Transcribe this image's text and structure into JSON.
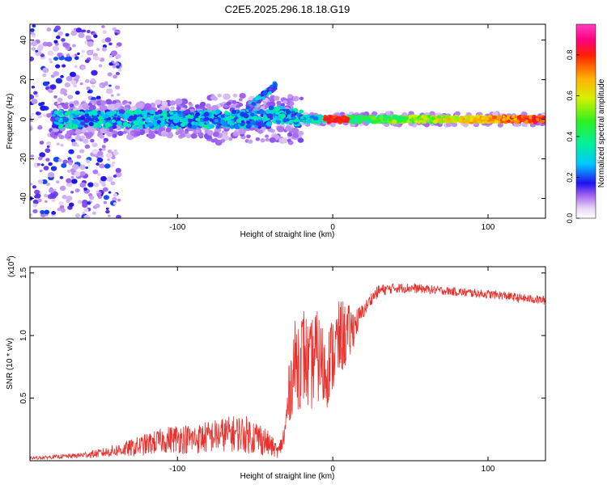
{
  "figure_title": "C2E5.2025.296.18.18.G19",
  "colors": {
    "snr_line": "#e8302c",
    "axis": "#000000",
    "background": "#ffffff"
  },
  "chart_data": [
    {
      "type": "heatmap",
      "title": "C2E5.2025.296.18.18.G19",
      "xlabel": "Height of straight line (km)",
      "ylabel": "Frequency (Hz)",
      "xlim": [
        -195,
        137
      ],
      "ylim": [
        -50,
        48
      ],
      "x_ticks": [
        -100,
        0,
        100
      ],
      "x_tick_labels": [
        "-100",
        "0",
        "100"
      ],
      "y_ticks": [
        -40,
        -20,
        0,
        20,
        40
      ],
      "y_tick_labels": [
        "-40",
        "-20",
        "0",
        "20",
        "40"
      ],
      "colorbar": {
        "label": "Normalized spectral amplitude",
        "range": [
          0.0,
          0.95
        ],
        "ticks": [
          0.0,
          0.2,
          0.4,
          0.6,
          0.8
        ],
        "tick_labels": [
          "0.0",
          "0.2",
          "0.4",
          "0.6",
          "0.8"
        ]
      },
      "features": [
        {
          "name": "noisy-region",
          "x_range": [
            -195,
            -137
          ],
          "freq_range": [
            -50,
            48
          ],
          "amplitude": 0.12
        },
        {
          "name": "main-band",
          "x_range": [
            -180,
            -20
          ],
          "center_freq": 0,
          "width_hz": 8,
          "amplitude": 0.25
        },
        {
          "name": "rising-branch",
          "x_range": [
            -55,
            -37
          ],
          "freq_range": [
            5,
            17
          ],
          "amplitude": 0.25
        },
        {
          "name": "tail-band",
          "x_range": [
            -20,
            137
          ],
          "center_freq": 0,
          "width_hz": 3,
          "amplitude": 0.9
        }
      ]
    },
    {
      "type": "line",
      "xlabel": "Height of straight line (km)",
      "ylabel": "SNR (10 * v/v)",
      "y_scale_label": "(x10",
      "y_scale_exponent": "4",
      "y_scale_close": ")",
      "xlim": [
        -195,
        137
      ],
      "ylim": [
        0,
        1.55
      ],
      "x_ticks": [
        -100,
        0,
        100
      ],
      "x_tick_labels": [
        "-100",
        "0",
        "100"
      ],
      "y_ticks": [
        0.5,
        1.0,
        1.5
      ],
      "y_tick_labels": [
        "0.5",
        "1.0",
        "1.5"
      ],
      "series": [
        {
          "name": "SNR",
          "x": [
            -195,
            -180,
            -165,
            -150,
            -140,
            -130,
            -120,
            -110,
            -100,
            -90,
            -80,
            -70,
            -60,
            -52,
            -45,
            -40,
            -35,
            -31,
            -28,
            -25,
            -22,
            -18,
            -15,
            -12,
            -8,
            -5,
            -2,
            2,
            6,
            10,
            15,
            20,
            25,
            30,
            40,
            50,
            60,
            70,
            80,
            90,
            100,
            110,
            120,
            130,
            137
          ],
          "mean": [
            0.02,
            0.03,
            0.04,
            0.06,
            0.08,
            0.1,
            0.13,
            0.16,
            0.18,
            0.17,
            0.19,
            0.21,
            0.22,
            0.2,
            0.17,
            0.12,
            0.07,
            0.2,
            0.55,
            0.75,
            0.8,
            0.85,
            0.7,
            0.85,
            0.8,
            0.7,
            0.8,
            0.9,
            1.0,
            1.0,
            1.1,
            1.2,
            1.3,
            1.36,
            1.38,
            1.38,
            1.37,
            1.36,
            1.35,
            1.34,
            1.33,
            1.32,
            1.3,
            1.29,
            1.28
          ],
          "noise": [
            0.01,
            0.015,
            0.02,
            0.035,
            0.05,
            0.07,
            0.09,
            0.1,
            0.12,
            0.12,
            0.13,
            0.14,
            0.15,
            0.15,
            0.13,
            0.09,
            0.05,
            0.12,
            0.25,
            0.35,
            0.4,
            0.4,
            0.35,
            0.4,
            0.35,
            0.35,
            0.3,
            0.35,
            0.3,
            0.25,
            0.12,
            0.06,
            0.05,
            0.05,
            0.04,
            0.04,
            0.035,
            0.035,
            0.035,
            0.035,
            0.035,
            0.035,
            0.035,
            0.035,
            0.035
          ]
        }
      ]
    }
  ]
}
